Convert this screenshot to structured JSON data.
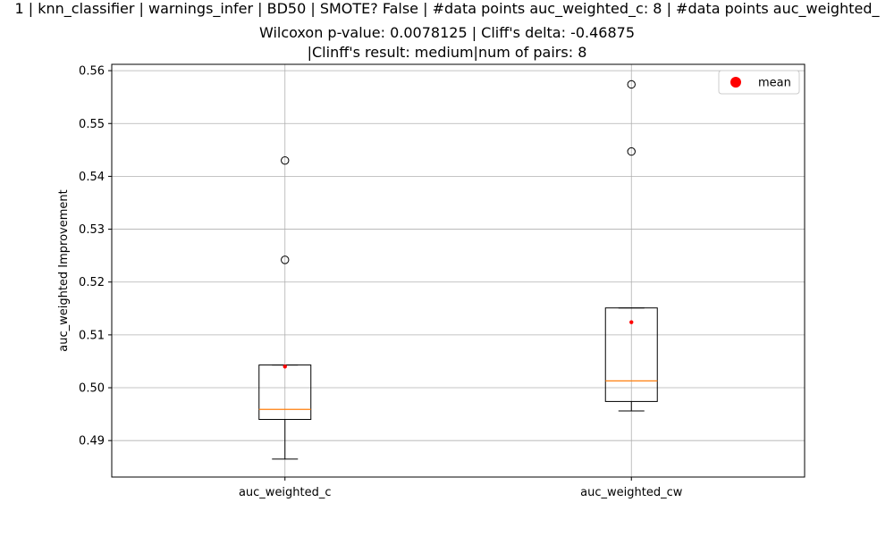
{
  "chart_data": {
    "type": "box",
    "title_lines": [
      "1 | knn_classifier | warnings_infer | BD50 | SMOTE? False | #data points auc_weighted_c: 8 | #data points auc_weighted_",
      "Wilcoxon p-value: 0.0078125 | Cliff's delta: -0.46875",
      "|Clinff's result: medium|num of pairs: 8"
    ],
    "ylabel": "auc_weighted Improvement",
    "xlabel": "",
    "ylim": [
      0.4831,
      0.5612
    ],
    "yticks": [
      0.49,
      0.5,
      0.51,
      0.52,
      0.53,
      0.54,
      0.55,
      0.56
    ],
    "ytick_labels": [
      "0.49",
      "0.50",
      "0.51",
      "0.52",
      "0.53",
      "0.54",
      "0.55",
      "0.56"
    ],
    "categories": [
      "auc_weighted_c",
      "auc_weighted_cw"
    ],
    "grid": true,
    "legend": {
      "placement": "top-right",
      "entries": [
        "mean"
      ]
    },
    "colors": {
      "median": "#ff7f0e",
      "mean": "#ff0000",
      "box": "#000000",
      "grid": "#b0b0b0"
    },
    "boxes": [
      {
        "name": "auc_weighted_c",
        "whisker_low": 0.4865,
        "q1": 0.494,
        "median": 0.4959,
        "q3": 0.5043,
        "whisker_high": 0.5043,
        "mean": 0.504,
        "outliers": [
          0.5242,
          0.543
        ]
      },
      {
        "name": "auc_weighted_cw",
        "whisker_low": 0.4956,
        "q1": 0.4974,
        "median": 0.5013,
        "q3": 0.5151,
        "whisker_high": 0.5151,
        "mean": 0.5124,
        "outliers": [
          0.5447,
          0.5574
        ]
      }
    ]
  }
}
